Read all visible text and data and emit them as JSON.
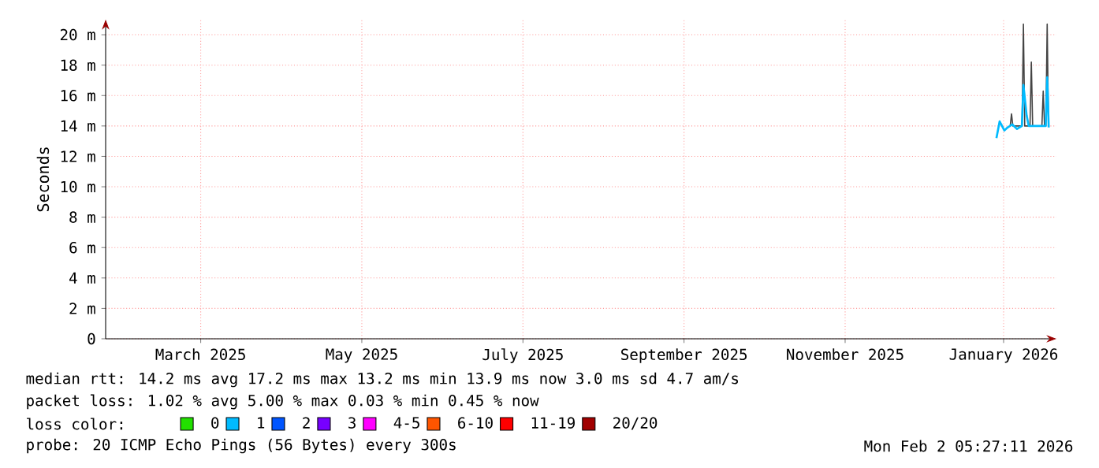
{
  "chart_data": {
    "type": "line",
    "ylabel": "Seconds",
    "xlim": [
      "2025-02-07",
      "2026-02-02"
    ],
    "xticks": [
      {
        "value": "2025-03-15",
        "label": "March 2025"
      },
      {
        "value": "2025-05-15",
        "label": "May 2025"
      },
      {
        "value": "2025-07-15",
        "label": "July 2025"
      },
      {
        "value": "2025-09-14",
        "label": "September 2025"
      },
      {
        "value": "2025-11-14",
        "label": "November 2025"
      },
      {
        "value": "2026-01-13",
        "label": "January 2026"
      }
    ],
    "ylim": [
      0,
      21
    ],
    "yticks": [
      0,
      {
        "value": 2,
        "label": "2 m"
      },
      {
        "value": 4,
        "label": "4 m"
      },
      {
        "value": 6,
        "label": "6 m"
      },
      {
        "value": 8,
        "label": "8 m"
      },
      {
        "value": 10,
        "label": "10 m"
      },
      {
        "value": 12,
        "label": "12 m"
      },
      {
        "value": 14,
        "label": "14 m"
      },
      {
        "value": 16,
        "label": "16 m"
      },
      {
        "value": 18,
        "label": "18 m"
      },
      {
        "value": 20,
        "label": "20 m"
      }
    ],
    "grid": true,
    "marker": "none",
    "line_style": "solid",
    "legend": "bottom",
    "legend_title": "loss color:",
    "series": [
      {
        "color": "#444444",
        "x": [
          "2026-01-15T12:00",
          "2026-01-16T00:00",
          "2026-01-16T12:00",
          "2026-01-20T00:00",
          "2026-01-20T12:00",
          "2026-01-21T00:00",
          "2026-01-23T00:00",
          "2026-01-23T12:00",
          "2026-01-24T00:00",
          "2026-01-27T12:00",
          "2026-01-28T00:00",
          "2026-01-28T12:00",
          "2026-01-29T00:00",
          "2026-01-29T12:00",
          "2026-01-30T00:00"
        ],
        "values": [
          14.0,
          14.8,
          14.0,
          14.0,
          20.7,
          14.0,
          14.0,
          18.2,
          14.0,
          14.0,
          16.3,
          14.0,
          14.0,
          20.7,
          14.0
        ]
      },
      {
        "name": "0",
        "color": "#22e000"
      },
      {
        "name": "1",
        "color": "#00bbff",
        "x": [
          "2026-01-10T07:00",
          "2026-01-11T12:00",
          "2026-01-13T07:00",
          "2026-01-14T12:00",
          "2026-01-16T07:00",
          "2026-01-18T02:00",
          "2026-01-19T22:00",
          "2026-01-20T12:00",
          "2026-01-21T17:00",
          "2026-01-22T12:00",
          "2026-01-24T02:00",
          "2026-01-27T02:00",
          "2026-01-28T22:00",
          "2026-01-29T12:00",
          "2026-01-30T02:00"
        ],
        "values": [
          13.2,
          14.3,
          13.7,
          13.9,
          14.1,
          13.8,
          14.0,
          16.7,
          14.7,
          14.0,
          14.0,
          14.0,
          14.0,
          17.2,
          13.9
        ]
      },
      {
        "name": "2",
        "color": "#0055ff"
      },
      {
        "name": "3",
        "color": "#7700ff"
      },
      {
        "name": "4-5",
        "color": "#ff00ff"
      },
      {
        "name": "6-10",
        "color": "#ff5500"
      },
      {
        "name": "11-19",
        "color": "#ff0000"
      },
      {
        "name": "20/20",
        "color": "#a10000"
      }
    ],
    "annotations": [
      "median rtt: 14.2 ms avg 17.2 ms max 13.2 ms min 13.9 ms now 3.0 ms sd 4.7 am/s",
      "packet loss: 1.02 % avg 5.00 % max 0.03 % min 0.45 % now",
      "probe: 20 ICMP Echo Pings (56 Bytes) every 300s",
      "Mon Feb 2 05:27:11 2026"
    ]
  }
}
